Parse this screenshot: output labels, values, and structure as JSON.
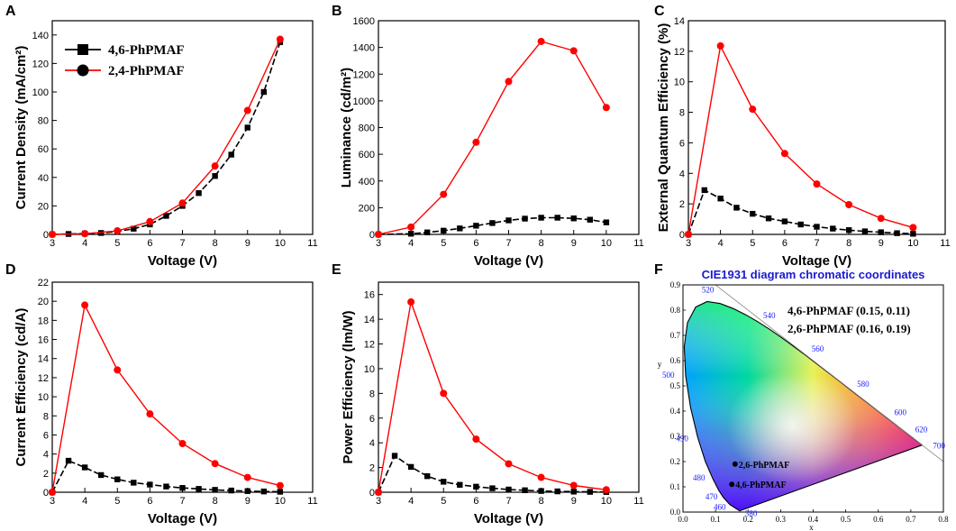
{
  "colors": {
    "series_a": "#000000",
    "series_b": "#ff0000",
    "cie_title": "#1a1ad0",
    "wl_label": "#1a1aff"
  },
  "legend": {
    "series_a": "4,6-PhPMAF",
    "series_b": "2,4-PhPMAF"
  },
  "chart_data": [
    {
      "id": "A",
      "letter": "A",
      "type": "line",
      "xlabel": "Voltage (V)",
      "ylabel": "Current Density (mA/cm²)",
      "xlim": [
        3,
        11
      ],
      "xticks": [
        3,
        4,
        5,
        6,
        7,
        8,
        9,
        10,
        11
      ],
      "ylim": [
        0,
        150
      ],
      "yticks": [
        0,
        20,
        40,
        60,
        80,
        100,
        120,
        140
      ],
      "series": [
        {
          "name": "4,6-PhPMAF",
          "marker": "square",
          "x": [
            3,
            3.5,
            4,
            4.5,
            5,
            5.5,
            6,
            6.5,
            7,
            7.5,
            8,
            8.5,
            9,
            9.5,
            10
          ],
          "y": [
            0,
            0.3,
            0.6,
            1,
            2,
            4,
            7,
            13,
            20,
            29,
            41,
            56,
            75,
            100,
            135
          ]
        },
        {
          "name": "2,4-PhPMAF",
          "marker": "circle",
          "x": [
            3,
            4,
            5,
            6,
            7,
            8,
            9,
            10
          ],
          "y": [
            0,
            0.5,
            2.5,
            9,
            22,
            48,
            87,
            137
          ]
        }
      ]
    },
    {
      "id": "B",
      "letter": "B",
      "type": "line",
      "xlabel": "Voltage (V)",
      "ylabel": "Luminance (cd/m²)",
      "xlim": [
        3,
        11
      ],
      "xticks": [
        3,
        4,
        5,
        6,
        7,
        8,
        9,
        10,
        11
      ],
      "ylim": [
        0,
        1600
      ],
      "yticks": [
        0,
        200,
        400,
        600,
        800,
        1000,
        1200,
        1400,
        1600
      ],
      "series": [
        {
          "name": "4,6-PhPMAF",
          "marker": "square",
          "x": [
            3,
            4,
            4.5,
            5,
            5.5,
            6,
            6.5,
            7,
            7.5,
            8,
            8.5,
            9,
            9.5,
            10
          ],
          "y": [
            0,
            5,
            15,
            28,
            45,
            65,
            85,
            105,
            118,
            125,
            125,
            120,
            110,
            90
          ]
        },
        {
          "name": "2,4-PhPMAF",
          "marker": "circle",
          "x": [
            3,
            4,
            5,
            6,
            7,
            8,
            9,
            10
          ],
          "y": [
            0,
            55,
            300,
            690,
            1145,
            1445,
            1375,
            950
          ]
        }
      ]
    },
    {
      "id": "C",
      "letter": "C",
      "type": "line",
      "xlabel": "Voltage (V)",
      "ylabel": "External Quantum Efficiency (%)",
      "xlim": [
        3,
        11
      ],
      "xticks": [
        3,
        4,
        5,
        6,
        7,
        8,
        9,
        10,
        11
      ],
      "ylim": [
        0,
        14
      ],
      "yticks": [
        0,
        2,
        4,
        6,
        8,
        10,
        12,
        14
      ],
      "series": [
        {
          "name": "4,6-PhPMAF",
          "marker": "square",
          "x": [
            3,
            3.5,
            4,
            4.5,
            5,
            5.5,
            6,
            6.5,
            7,
            7.5,
            8,
            8.5,
            9,
            9.5,
            10
          ],
          "y": [
            0,
            2.9,
            2.35,
            1.75,
            1.35,
            1.05,
            0.85,
            0.65,
            0.5,
            0.38,
            0.28,
            0.2,
            0.14,
            0.08,
            0.04
          ]
        },
        {
          "name": "2,4-PhPMAF",
          "marker": "circle",
          "x": [
            3,
            4,
            5,
            6,
            7,
            8,
            9,
            10
          ],
          "y": [
            0,
            12.35,
            8.2,
            5.3,
            3.3,
            1.95,
            1.05,
            0.45
          ]
        }
      ]
    },
    {
      "id": "D",
      "letter": "D",
      "type": "line",
      "xlabel": "Voltage (V)",
      "ylabel": "Current Efficiency (cd/A)",
      "xlim": [
        3,
        11
      ],
      "xticks": [
        3,
        4,
        5,
        6,
        7,
        8,
        9,
        10,
        11
      ],
      "ylim": [
        0,
        22
      ],
      "yticks": [
        0,
        2,
        4,
        6,
        8,
        10,
        12,
        14,
        16,
        18,
        20,
        22
      ],
      "series": [
        {
          "name": "4,6-PhPMAF",
          "marker": "square",
          "x": [
            3,
            3.5,
            4,
            4.5,
            5,
            5.5,
            6,
            6.5,
            7,
            7.5,
            8,
            8.5,
            9,
            9.5,
            10
          ],
          "y": [
            0,
            3.3,
            2.6,
            1.8,
            1.35,
            1.0,
            0.8,
            0.6,
            0.45,
            0.35,
            0.25,
            0.18,
            0.12,
            0.08,
            0.05
          ]
        },
        {
          "name": "2,4-PhPMAF",
          "marker": "circle",
          "x": [
            3,
            4,
            5,
            6,
            7,
            8,
            9,
            10
          ],
          "y": [
            0,
            19.6,
            12.8,
            8.2,
            5.1,
            3.0,
            1.55,
            0.7
          ]
        }
      ]
    },
    {
      "id": "E",
      "letter": "E",
      "type": "line",
      "xlabel": "Voltage (V)",
      "ylabel": "Power Efficiency (lm/W)",
      "xlim": [
        3,
        11
      ],
      "xticks": [
        3,
        4,
        5,
        6,
        7,
        8,
        9,
        10,
        11
      ],
      "ylim": [
        0,
        17
      ],
      "yticks": [
        0,
        2,
        4,
        6,
        8,
        10,
        12,
        14,
        16
      ],
      "series": [
        {
          "name": "4,6-PhPMAF",
          "marker": "square",
          "x": [
            3,
            3.5,
            4,
            4.5,
            5,
            5.5,
            6,
            6.5,
            7,
            7.5,
            8,
            8.5,
            9,
            9.5,
            10
          ],
          "y": [
            0,
            2.95,
            2.05,
            1.3,
            0.85,
            0.6,
            0.45,
            0.32,
            0.22,
            0.16,
            0.1,
            0.07,
            0.05,
            0.03,
            0.02
          ]
        },
        {
          "name": "2,4-PhPMAF",
          "marker": "circle",
          "x": [
            3,
            4,
            5,
            6,
            7,
            8,
            9,
            10
          ],
          "y": [
            0,
            15.4,
            8.0,
            4.3,
            2.3,
            1.2,
            0.55,
            0.2
          ]
        }
      ]
    },
    {
      "id": "F",
      "letter": "F",
      "type": "scatter",
      "title": "CIE1931 diagram chromatic coordinates",
      "xlabel": "x",
      "ylabel": "y",
      "xlim": [
        0,
        0.8
      ],
      "xticks": [
        0.0,
        0.1,
        0.2,
        0.3,
        0.4,
        0.5,
        0.6,
        0.7,
        0.8
      ],
      "ylim": [
        0,
        0.9
      ],
      "yticks": [
        0.0,
        0.1,
        0.2,
        0.3,
        0.4,
        0.5,
        0.6,
        0.7,
        0.8,
        0.9
      ],
      "xtick_labels": [
        "0.0",
        "0.1",
        "0.2",
        "0.3",
        "0.4",
        "0.5",
        "0.6",
        "0.7",
        "0.8"
      ],
      "ytick_labels": [
        "0.0",
        "0.1",
        "0.2",
        "0.3",
        "0.4",
        "0.5",
        "0.6",
        "0.7",
        "0.8",
        "0.9"
      ],
      "notes": [
        "4,6-PhPMAF (0.15, 0.11)",
        "2,6-PhPMAF (0.16, 0.19)"
      ],
      "points": [
        {
          "name": "2,6-PhPMAF",
          "x": 0.16,
          "y": 0.19
        },
        {
          "name": "4,6-PhPMAF",
          "x": 0.15,
          "y": 0.11
        }
      ],
      "wavelength_labels": [
        {
          "nm": "380",
          "x": 0.1741,
          "y": 0.005
        },
        {
          "nm": "460",
          "x": 0.144,
          "y": 0.0297
        },
        {
          "nm": "470",
          "x": 0.1241,
          "y": 0.0578
        },
        {
          "nm": "480",
          "x": 0.0913,
          "y": 0.1327
        },
        {
          "nm": "490",
          "x": 0.0454,
          "y": 0.295
        },
        {
          "nm": "500",
          "x": 0.0082,
          "y": 0.5384
        },
        {
          "nm": "520",
          "x": 0.0743,
          "y": 0.8338
        },
        {
          "nm": "540",
          "x": 0.2296,
          "y": 0.7543
        },
        {
          "nm": "560",
          "x": 0.3731,
          "y": 0.6245
        },
        {
          "nm": "580",
          "x": 0.5125,
          "y": 0.4866
        },
        {
          "nm": "600",
          "x": 0.627,
          "y": 0.3725
        },
        {
          "nm": "620",
          "x": 0.6915,
          "y": 0.3083
        },
        {
          "nm": "700",
          "x": 0.7347,
          "y": 0.2653
        }
      ],
      "locus": [
        [
          0.1741,
          0.005
        ],
        [
          0.144,
          0.0297
        ],
        [
          0.1241,
          0.0578
        ],
        [
          0.1096,
          0.0868
        ],
        [
          0.0913,
          0.1327
        ],
        [
          0.0687,
          0.2007
        ],
        [
          0.0454,
          0.295
        ],
        [
          0.0235,
          0.4127
        ],
        [
          0.0082,
          0.5384
        ],
        [
          0.0039,
          0.6548
        ],
        [
          0.0139,
          0.7502
        ],
        [
          0.0389,
          0.812
        ],
        [
          0.0743,
          0.8338
        ],
        [
          0.1142,
          0.8262
        ],
        [
          0.1547,
          0.8059
        ],
        [
          0.1929,
          0.7816
        ],
        [
          0.2296,
          0.7543
        ],
        [
          0.2658,
          0.7243
        ],
        [
          0.3016,
          0.6923
        ],
        [
          0.3373,
          0.6589
        ],
        [
          0.3731,
          0.6245
        ],
        [
          0.4087,
          0.5896
        ],
        [
          0.4441,
          0.5547
        ],
        [
          0.4788,
          0.5202
        ],
        [
          0.5125,
          0.4866
        ],
        [
          0.5448,
          0.4544
        ],
        [
          0.5752,
          0.4242
        ],
        [
          0.6029,
          0.3965
        ],
        [
          0.627,
          0.3725
        ],
        [
          0.6482,
          0.3514
        ],
        [
          0.6658,
          0.334
        ],
        [
          0.6801,
          0.3197
        ],
        [
          0.6915,
          0.3083
        ],
        [
          0.7006,
          0.2993
        ],
        [
          0.7079,
          0.292
        ],
        [
          0.714,
          0.2859
        ],
        [
          0.719,
          0.2809
        ],
        [
          0.723,
          0.277
        ],
        [
          0.726,
          0.274
        ],
        [
          0.7347,
          0.2653
        ]
      ]
    }
  ]
}
